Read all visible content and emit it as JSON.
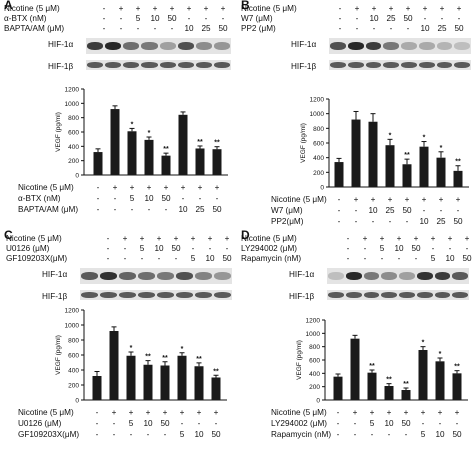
{
  "figure": {
    "panels": [
      {
        "label": "A",
        "top_rows": [
          {
            "label": "Nicotine (5 μM)",
            "values": [
              "-",
              "+",
              "+",
              "+",
              "+",
              "+",
              "+",
              "+"
            ]
          },
          {
            "label": "α-BTX (nM)",
            "values": [
              "-",
              "-",
              "5",
              "10",
              "50",
              "-",
              "-",
              "-"
            ]
          },
          {
            "label": "BAPTA/AM (μM)",
            "values": [
              "-",
              "-",
              "-",
              "-",
              "-",
              "10",
              "25",
              "50"
            ]
          }
        ],
        "blots": [
          "HIF-1α",
          "HIF-1β"
        ],
        "ylabel": "VEGF (pg/ml)",
        "bottom_rows": [
          {
            "label": "Nicotine (5 μM)",
            "values": [
              "-",
              "+",
              "+",
              "+",
              "+",
              "+",
              "+",
              "+"
            ]
          },
          {
            "label": "α-BTX (nM)",
            "values": [
              "-",
              "-",
              "5",
              "10",
              "50",
              "-",
              "-",
              "-"
            ]
          },
          {
            "label": "BAPTA/AM (μM)",
            "values": [
              "-",
              "-",
              "-",
              "-",
              "-",
              "10",
              "25",
              "50"
            ]
          }
        ]
      },
      {
        "label": "B",
        "top_rows": [
          {
            "label": "Nicotine (5 μM)",
            "values": [
              "-",
              "+",
              "+",
              "+",
              "+",
              "+",
              "+",
              "+"
            ]
          },
          {
            "label": "W7 (μM)",
            "values": [
              "-",
              "-",
              "10",
              "25",
              "50",
              "-",
              "-",
              "-"
            ]
          },
          {
            "label": "PP2 (μM)",
            "values": [
              "-",
              "-",
              "-",
              "-",
              "-",
              "10",
              "25",
              "50"
            ]
          }
        ],
        "blots": [
          "HIF-1α",
          "HIF-1β"
        ],
        "ylabel": "VEGF (pg/ml)",
        "bottom_rows": [
          {
            "label": "Nicotine (5 μM)",
            "values": [
              "-",
              "+",
              "+",
              "+",
              "+",
              "+",
              "+",
              "+"
            ]
          },
          {
            "label": "W7 (μM)",
            "values": [
              "-",
              "-",
              "10",
              "25",
              "50",
              "-",
              "-",
              "-"
            ]
          },
          {
            "label": "PP2(μM)",
            "values": [
              "-",
              "-",
              "-",
              "-",
              "-",
              "10",
              "25",
              "50"
            ]
          }
        ]
      },
      {
        "label": "C",
        "top_rows": [
          {
            "label": "Nicotine (5 μM)",
            "values": [
              "-",
              "+",
              "+",
              "+",
              "+",
              "+",
              "+",
              "+"
            ]
          },
          {
            "label": "U0126 (μM)",
            "values": [
              "-",
              "-",
              "5",
              "10",
              "50",
              "-",
              "-",
              "-"
            ]
          },
          {
            "label": "GF109203X(μM)",
            "values": [
              "-",
              "-",
              "-",
              "-",
              "-",
              "5",
              "10",
              "50"
            ]
          }
        ],
        "blots": [
          "HIF-1α",
          "HIF-1β"
        ],
        "ylabel": "VEGF (pg/ml)",
        "bottom_rows": [
          {
            "label": "Nicotine (5 μM)",
            "values": [
              "-",
              "+",
              "+",
              "+",
              "+",
              "+",
              "+",
              "+"
            ]
          },
          {
            "label": "U0126 (μM)",
            "values": [
              "-",
              "-",
              "5",
              "10",
              "50",
              "-",
              "-",
              "-"
            ]
          },
          {
            "label": "GF109203X(μM)",
            "values": [
              "-",
              "-",
              "-",
              "-",
              "-",
              "5",
              "10",
              "50"
            ]
          }
        ]
      },
      {
        "label": "D",
        "top_rows": [
          {
            "label": "Nicotine (5 μM)",
            "values": [
              "-",
              "+",
              "+",
              "+",
              "+",
              "+",
              "+",
              "+"
            ]
          },
          {
            "label": "LY294002 (μM)",
            "values": [
              "-",
              "-",
              "5",
              "10",
              "50",
              "-",
              "-",
              "-"
            ]
          },
          {
            "label": "Rapamycin (nM)",
            "values": [
              "-",
              "-",
              "-",
              "-",
              "-",
              "5",
              "10",
              "50"
            ]
          }
        ],
        "blots": [
          "HIF-1α",
          "HIF-1β"
        ],
        "ylabel": "VEGF (pg/ml)",
        "bottom_rows": [
          {
            "label": "Nicotine (5 μM)",
            "values": [
              "-",
              "+",
              "+",
              "+",
              "+",
              "+",
              "+",
              "+"
            ]
          },
          {
            "label": "LY294002 (μM)",
            "values": [
              "-",
              "-",
              "5",
              "10",
              "50",
              "-",
              "-",
              "-"
            ]
          },
          {
            "label": "Rapamycin (nM)",
            "values": [
              "-",
              "-",
              "-",
              "-",
              "-",
              "5",
              "10",
              "50"
            ]
          }
        ]
      }
    ]
  },
  "chart_data": [
    {
      "panel": "A",
      "type": "bar",
      "ylabel": "VEGF (pg/ml)",
      "ylim": [
        0,
        1200
      ],
      "yticks": [
        0,
        200,
        400,
        600,
        800,
        1000,
        1200
      ],
      "values": [
        320,
        920,
        610,
        490,
        270,
        840,
        370,
        360
      ],
      "errors": [
        45,
        45,
        40,
        40,
        35,
        40,
        35,
        35
      ],
      "annotations": [
        "",
        "",
        "*",
        "*",
        "**",
        "",
        "**",
        "**"
      ],
      "bar_color": "#1a1a1a"
    },
    {
      "panel": "B",
      "type": "bar",
      "ylabel": "VEGF (pg/ml)",
      "ylim": [
        0,
        1200
      ],
      "yticks": [
        0,
        200,
        400,
        600,
        800,
        1000,
        1200
      ],
      "values": [
        340,
        920,
        890,
        570,
        310,
        550,
        400,
        220
      ],
      "errors": [
        50,
        110,
        110,
        80,
        70,
        70,
        80,
        70
      ],
      "annotations": [
        "",
        "",
        "",
        "*",
        "**",
        "*",
        "*",
        "**"
      ],
      "bar_color": "#1a1a1a"
    },
    {
      "panel": "C",
      "type": "bar",
      "ylabel": "VEGF (pg/ml)",
      "ylim": [
        0,
        1200
      ],
      "yticks": [
        0,
        200,
        400,
        600,
        800,
        1000,
        1200
      ],
      "values": [
        320,
        920,
        590,
        470,
        460,
        590,
        450,
        300
      ],
      "errors": [
        60,
        55,
        50,
        55,
        50,
        40,
        45,
        30
      ],
      "annotations": [
        "",
        "",
        "*",
        "**",
        "**",
        "*",
        "**",
        "**"
      ],
      "bar_color": "#1a1a1a"
    },
    {
      "panel": "D",
      "type": "bar",
      "ylabel": "VEGF (pg/ml)",
      "ylim": [
        0,
        1200
      ],
      "yticks": [
        0,
        200,
        400,
        600,
        800,
        1000,
        1200
      ],
      "values": [
        350,
        920,
        410,
        210,
        150,
        750,
        580,
        400
      ],
      "errors": [
        40,
        50,
        40,
        35,
        30,
        50,
        50,
        40
      ],
      "annotations": [
        "",
        "",
        "**",
        "**",
        "**",
        "*",
        "*",
        "**"
      ],
      "bar_color": "#1a1a1a"
    }
  ]
}
